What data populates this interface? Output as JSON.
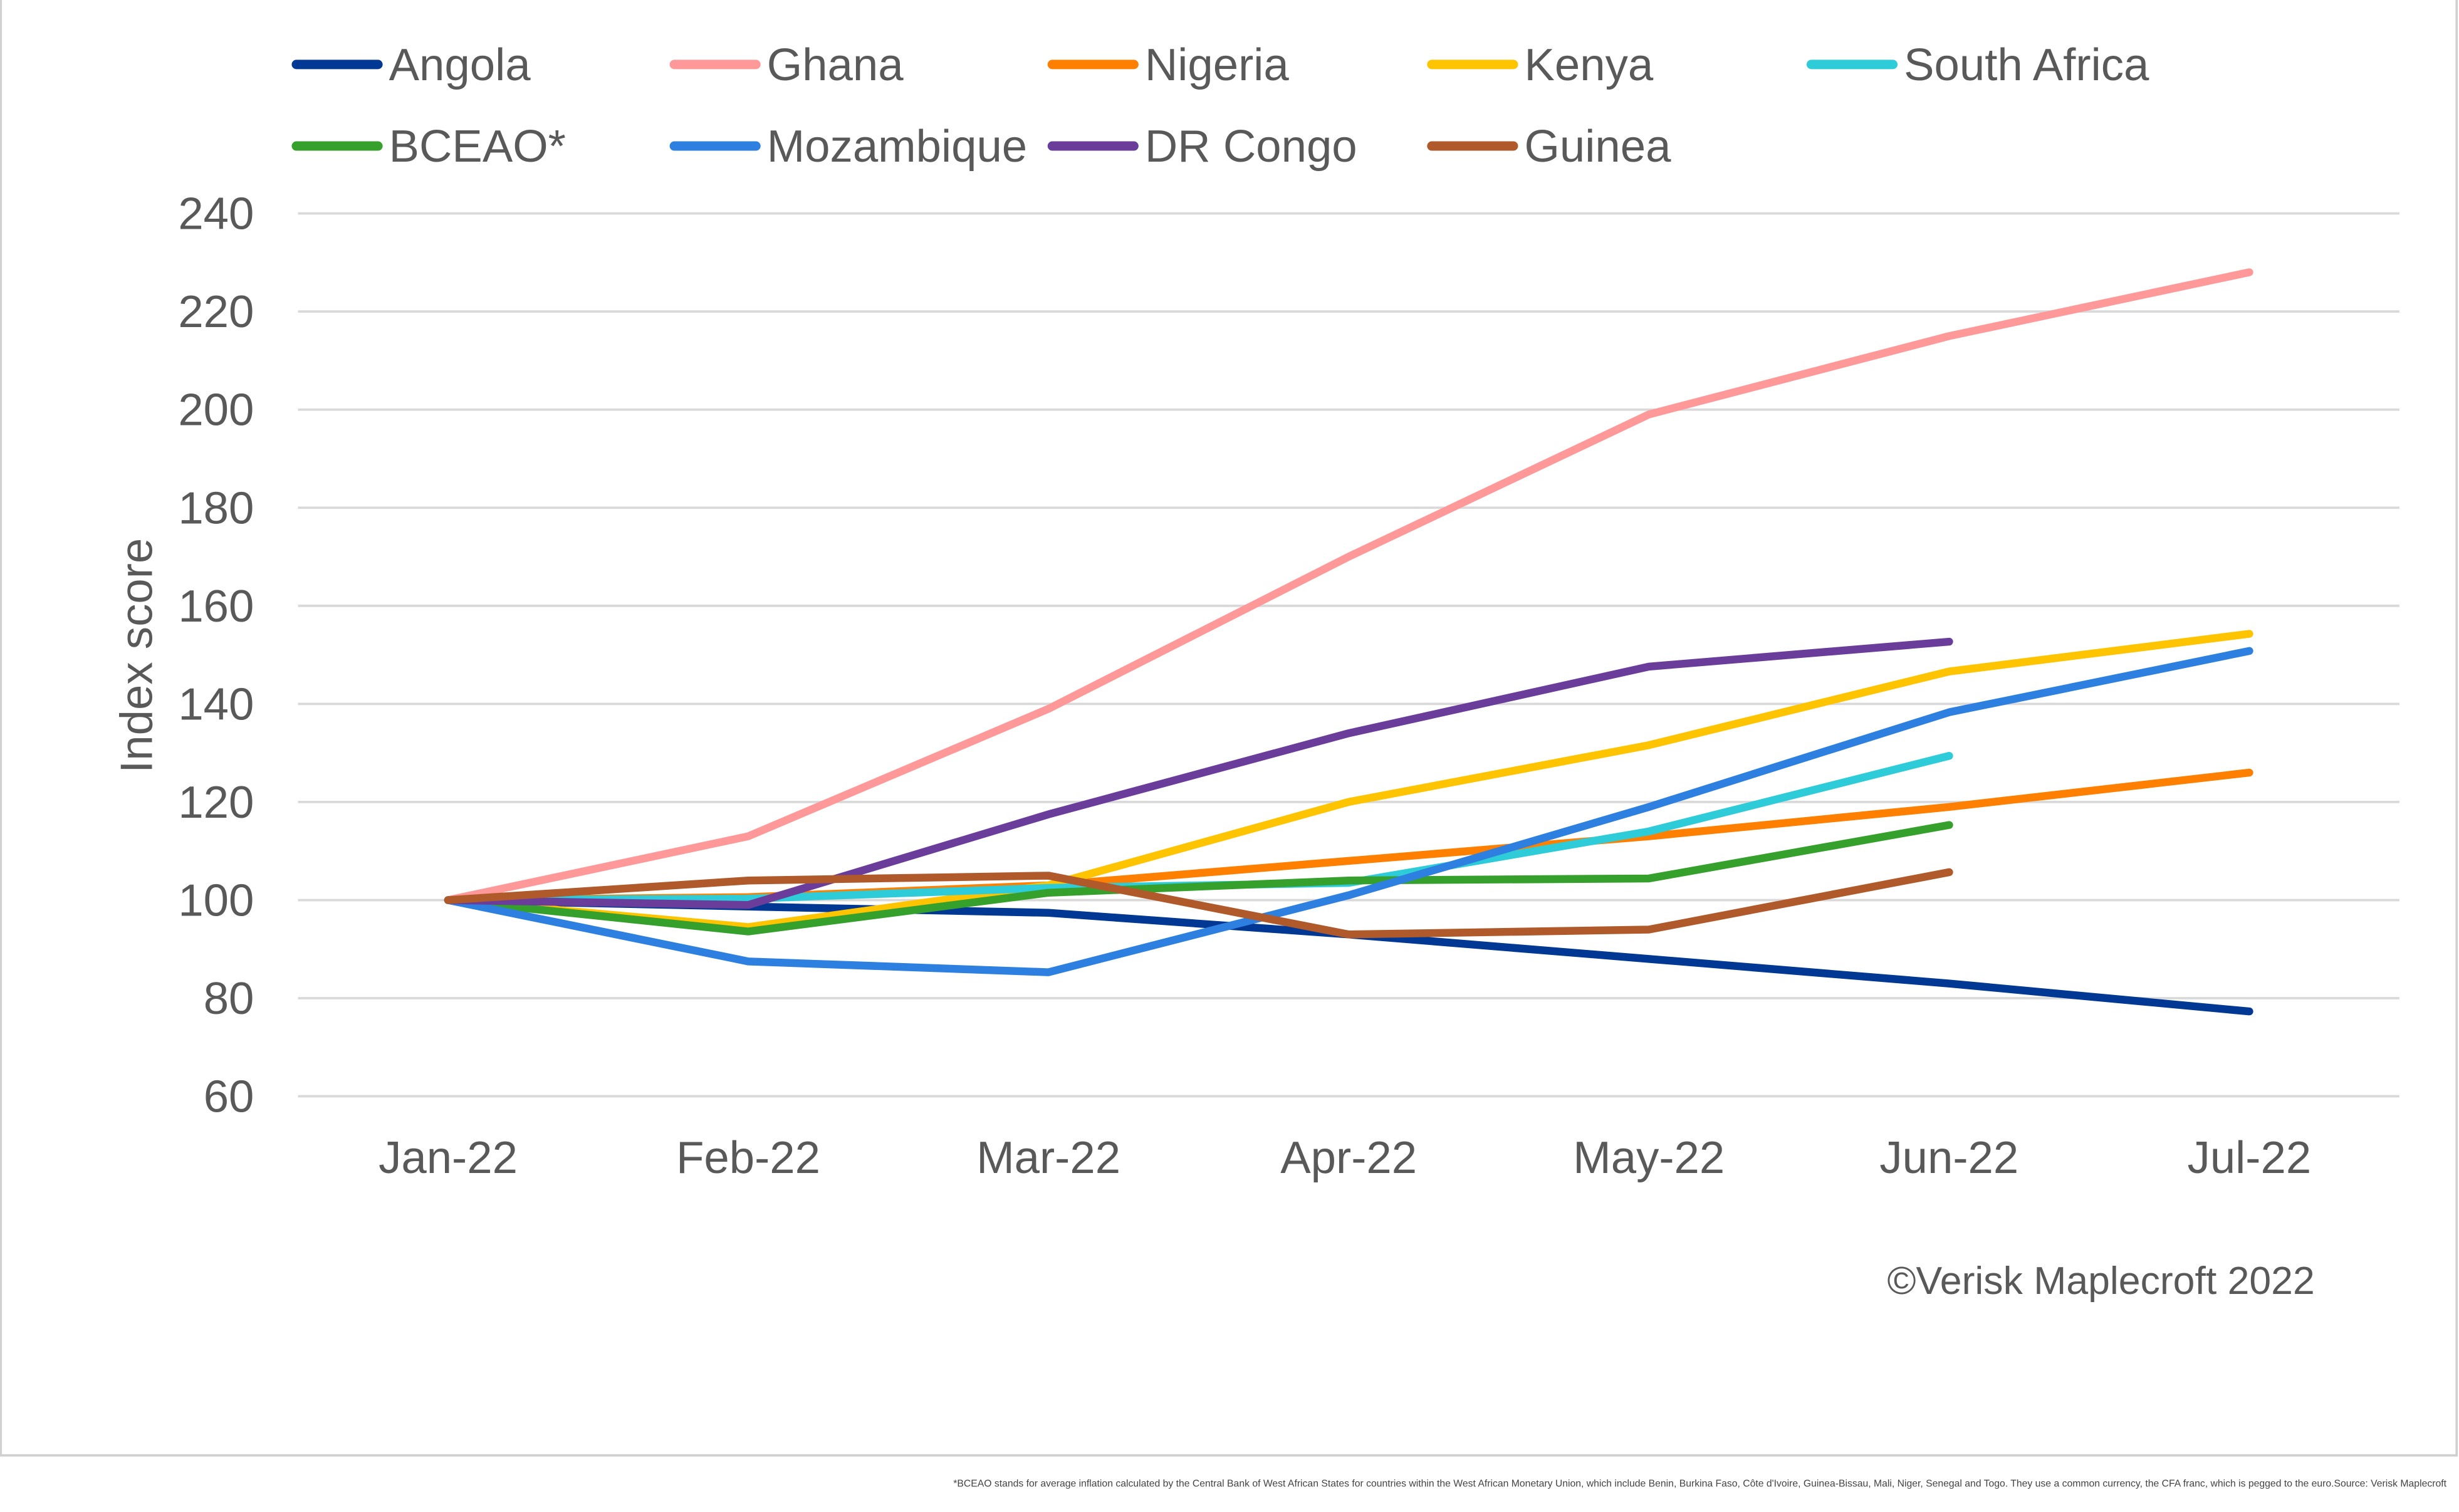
{
  "chart_data": {
    "type": "line",
    "title": "",
    "xlabel": "",
    "ylabel": "Index score",
    "ylim": [
      60,
      240
    ],
    "yticks": [
      60,
      80,
      100,
      120,
      140,
      160,
      180,
      200,
      220,
      240
    ],
    "grid": true,
    "legend_position": "top",
    "categories": [
      "Jan-22",
      "Feb-22",
      "Mar-22",
      "Apr-22",
      "May-22",
      "Jun-22",
      "Jul-22"
    ],
    "series": [
      {
        "name": "Angola",
        "color": "#003893",
        "values": [
          100,
          98.7,
          97.4,
          93,
          88,
          83,
          77.3
        ]
      },
      {
        "name": "Ghana",
        "color": "#FF9999",
        "values": [
          100,
          113,
          139,
          170,
          199,
          215,
          228
        ]
      },
      {
        "name": "Nigeria",
        "color": "#FF8000",
        "values": [
          100,
          100.6,
          103,
          108,
          113,
          119,
          126
        ]
      },
      {
        "name": "Kenya",
        "color": "#FFC400",
        "values": [
          100,
          94.5,
          103,
          120,
          131.6,
          146.6,
          154.3
        ]
      },
      {
        "name": "South Africa",
        "color": "#2ECCD9",
        "values": [
          100,
          100.3,
          102.5,
          103.5,
          114,
          129.4,
          null
        ]
      },
      {
        "name": "BCEAO*",
        "color": "#36A02D",
        "values": [
          100,
          93.6,
          101.5,
          104,
          104.4,
          115.3,
          null
        ]
      },
      {
        "name": "Mozambique",
        "color": "#2D7FE0",
        "values": [
          100,
          87.5,
          85.3,
          101,
          119,
          138.3,
          150.8
        ]
      },
      {
        "name": "DR Congo",
        "color": "#6A3D9A",
        "values": [
          100,
          99,
          117.5,
          134,
          147.6,
          152.7,
          null
        ]
      },
      {
        "name": "Guinea",
        "color": "#B05A2B",
        "values": [
          100,
          104,
          105,
          93,
          94,
          105.7,
          null
        ]
      }
    ],
    "annotations": [
      "©Verisk Maplecroft 2022"
    ]
  },
  "footnote": "*BCEAO stands for average inflation calculated by the Central Bank of West African States for countries within the West African Monetary Union, which include Benin, Burkina Faso, Côte d'Ivoire, Guinea-Bissau, Mali, Niger, Senegal and Togo. They use a common currency, the CFA franc, which is pegged to the euro.Source: Verisk Maplecroft"
}
